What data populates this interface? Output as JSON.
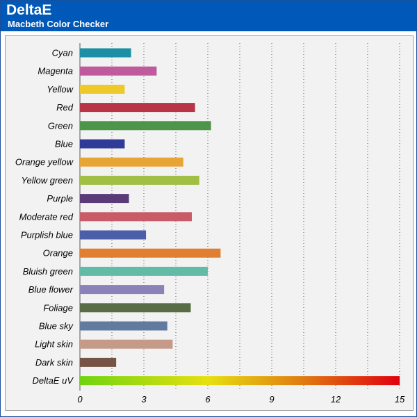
{
  "header": {
    "title": "DeltaE",
    "subtitle": "Macbeth Color Checker"
  },
  "chart_data": {
    "type": "bar",
    "orientation": "horizontal",
    "title": "DeltaE",
    "subtitle": "Macbeth Color Checker",
    "xlim": [
      0,
      15
    ],
    "xticks": [
      0,
      3,
      6,
      9,
      12,
      15
    ],
    "grid": "vertical-dotted",
    "bars": [
      {
        "label": "Cyan",
        "value": 2.4,
        "color": "#1b8fa3"
      },
      {
        "label": "Magenta",
        "value": 3.6,
        "color": "#bf5b9c"
      },
      {
        "label": "Yellow",
        "value": 2.1,
        "color": "#eec92a"
      },
      {
        "label": "Red",
        "value": 5.4,
        "color": "#b83446"
      },
      {
        "label": "Green",
        "value": 6.15,
        "color": "#4d9548"
      },
      {
        "label": "Blue",
        "value": 2.1,
        "color": "#2f3b96"
      },
      {
        "label": "Orange yellow",
        "value": 4.85,
        "color": "#e6a535"
      },
      {
        "label": "Yellow green",
        "value": 5.6,
        "color": "#a1bf45"
      },
      {
        "label": "Purple",
        "value": 2.3,
        "color": "#5a3b78"
      },
      {
        "label": "Moderate red",
        "value": 5.25,
        "color": "#c85b67"
      },
      {
        "label": "Purplish blue",
        "value": 3.1,
        "color": "#4c5ea8"
      },
      {
        "label": "Orange",
        "value": 6.6,
        "color": "#e07e31"
      },
      {
        "label": "Bluish green",
        "value": 6.0,
        "color": "#62bba6"
      },
      {
        "label": "Blue flower",
        "value": 3.95,
        "color": "#8b82b8"
      },
      {
        "label": "Foliage",
        "value": 5.2,
        "color": "#586c45"
      },
      {
        "label": "Blue sky",
        "value": 4.1,
        "color": "#617ba0"
      },
      {
        "label": "Light skin",
        "value": 4.35,
        "color": "#c69a88"
      },
      {
        "label": "Dark skin",
        "value": 1.7,
        "color": "#765445"
      },
      {
        "label": "DeltaE uV",
        "value": 15,
        "color": "gradient"
      }
    ],
    "gradient_colors": [
      "#6fd40f",
      "#e6e010",
      "#e07a10",
      "#e00010"
    ]
  }
}
